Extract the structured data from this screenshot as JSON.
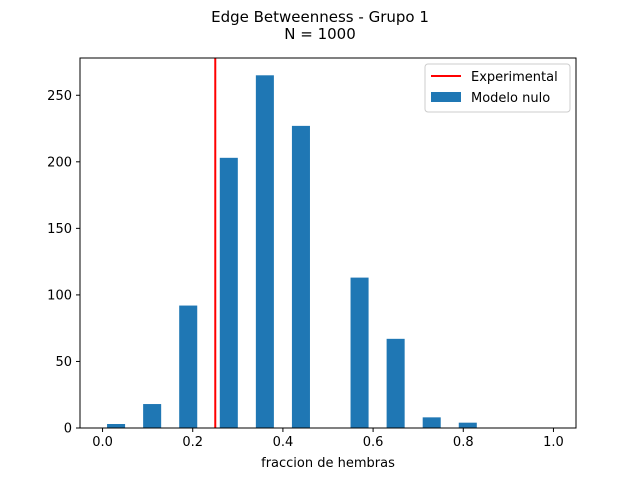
{
  "chart_data": {
    "type": "bar",
    "title": "Edge Betweenness - Grupo 1",
    "subtitle": "N = 1000",
    "xlabel": "fraccion de hembras",
    "ylabel": "",
    "xlim": [
      -0.05,
      1.05
    ],
    "ylim": [
      0,
      278
    ],
    "xticks": [
      0.0,
      0.2,
      0.4,
      0.6,
      0.8,
      1.0
    ],
    "xtick_labels": [
      "0.0",
      "0.2",
      "0.4",
      "0.6",
      "0.8",
      "1.0"
    ],
    "yticks": [
      0,
      50,
      100,
      150,
      200,
      250
    ],
    "ytick_labels": [
      "0",
      "50",
      "100",
      "150",
      "200",
      "250"
    ],
    "bar_width": 0.04,
    "bars": [
      {
        "x": 0.03,
        "value": 3
      },
      {
        "x": 0.11,
        "value": 18
      },
      {
        "x": 0.19,
        "value": 92
      },
      {
        "x": 0.28,
        "value": 203
      },
      {
        "x": 0.36,
        "value": 265
      },
      {
        "x": 0.44,
        "value": 227
      },
      {
        "x": 0.57,
        "value": 113
      },
      {
        "x": 0.65,
        "value": 67
      },
      {
        "x": 0.73,
        "value": 8
      },
      {
        "x": 0.81,
        "value": 4
      }
    ],
    "vline": {
      "x": 0.25,
      "name": "Experimental",
      "color": "#ff0000"
    },
    "series_name": "Modelo nulo",
    "bar_color": "#1f77b4",
    "legend_position": "top-right",
    "grid": false
  }
}
